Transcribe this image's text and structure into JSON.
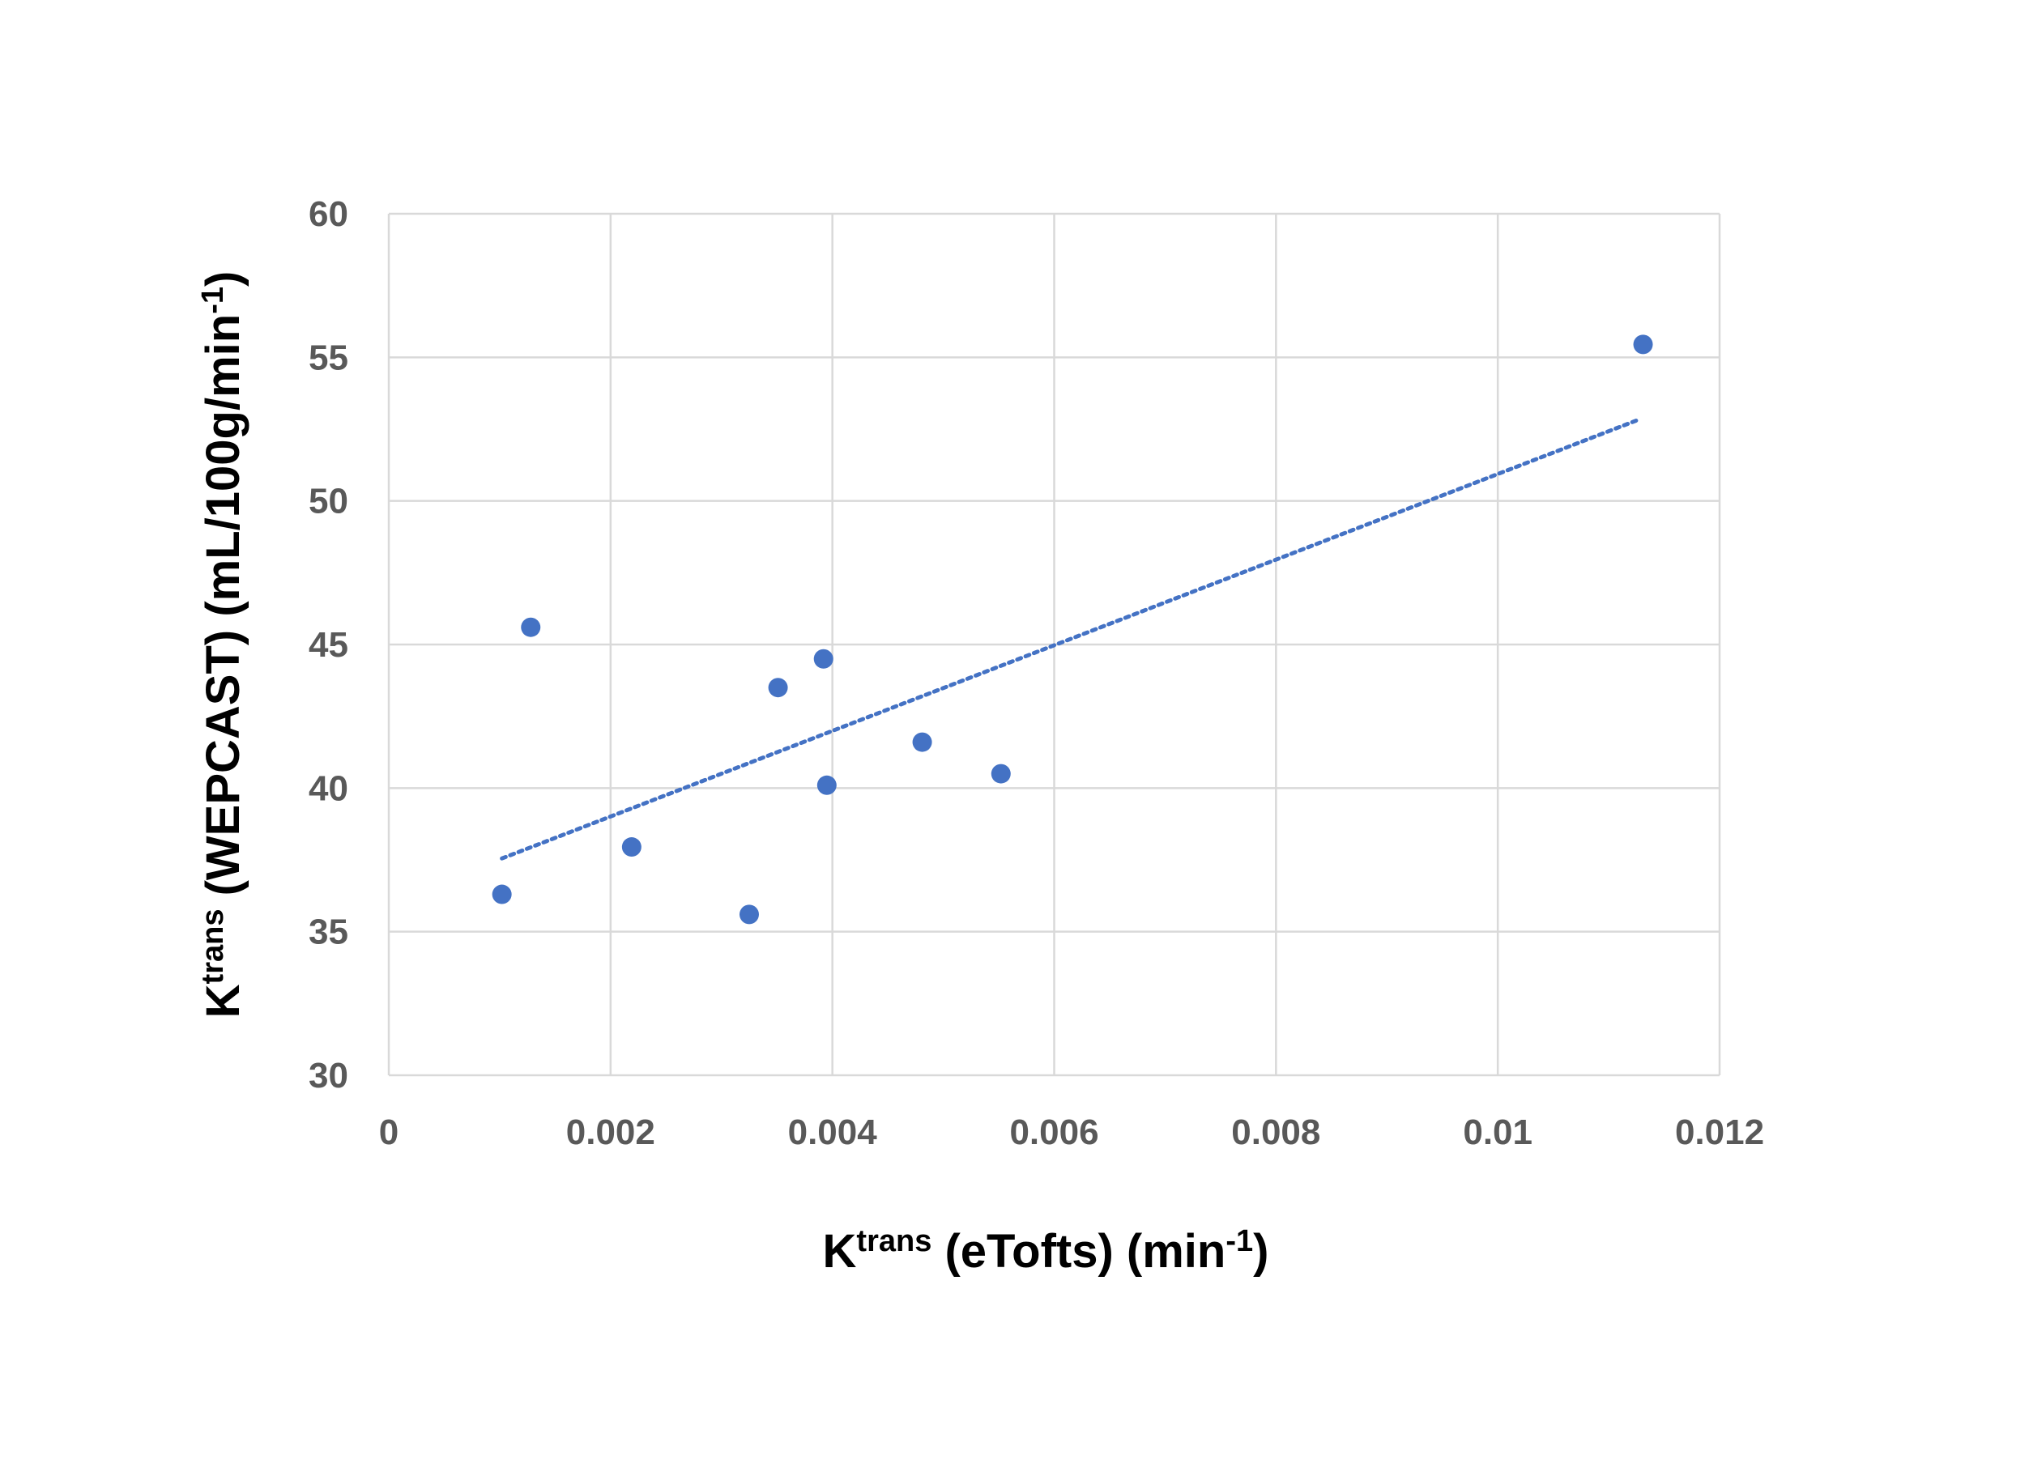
{
  "chart_data": {
    "type": "scatter",
    "title": "",
    "xlabel": {
      "main": "K",
      "sup": "trans",
      "rest": " (eTofts) (min",
      "unit_sup": "-1",
      "end": ")"
    },
    "ylabel": {
      "main": "K",
      "sup": "trans",
      "rest": " (WEPCAST) (mL/100g/min",
      "unit_sup": "-1",
      "end": ")"
    },
    "xlim": [
      0,
      0.012
    ],
    "ylim": [
      30,
      60
    ],
    "x_ticks": [
      0,
      0.002,
      0.004,
      0.006,
      0.008,
      0.01,
      0.012
    ],
    "x_tick_labels": [
      "0",
      "0.002",
      "0.004",
      "0.006",
      "0.008",
      "0.01",
      "0.012"
    ],
    "y_ticks": [
      30,
      35,
      40,
      45,
      50,
      55,
      60
    ],
    "y_tick_labels": [
      "30",
      "35",
      "40",
      "45",
      "50",
      "55",
      "60"
    ],
    "grid": true,
    "marker_color": "#4472C4",
    "trendline_color": "#4472C4",
    "series": [
      {
        "points": [
          [
            0.00102,
            36.3
          ],
          [
            0.00128,
            45.6
          ],
          [
            0.00219,
            37.95
          ],
          [
            0.00325,
            35.6
          ],
          [
            0.00351,
            43.5
          ],
          [
            0.00392,
            44.5
          ],
          [
            0.00395,
            40.1
          ],
          [
            0.00481,
            41.6
          ],
          [
            0.00552,
            40.5
          ],
          [
            0.01131,
            55.45
          ]
        ]
      }
    ],
    "trendline": {
      "type": "linear",
      "style": "dotted",
      "from": [
        0.00102,
        37.55
      ],
      "to": [
        0.01125,
        52.8
      ]
    }
  }
}
